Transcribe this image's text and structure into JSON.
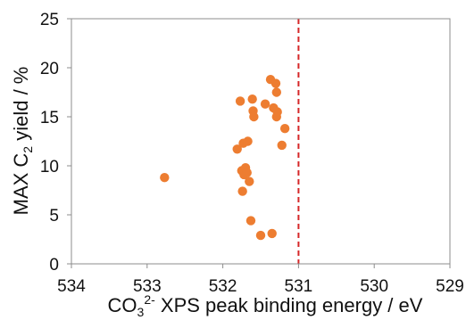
{
  "chart_data": {
    "type": "scatter",
    "xlabel": {
      "base": "CO",
      "subscript": "3",
      "superscript": "2-",
      "rest": " XPS peak binding energy / eV"
    },
    "ylabel": {
      "base": "MAX C",
      "subscript": "2",
      "rest": " yield / %"
    },
    "xlim": [
      534,
      529
    ],
    "x_reversed": true,
    "ylim": [
      0,
      25
    ],
    "x_ticks": [
      "534",
      "533",
      "532",
      "531",
      "530",
      "529"
    ],
    "y_ticks": [
      "0",
      "5",
      "10",
      "15",
      "20",
      "25"
    ],
    "grid": false,
    "legend": "none",
    "marker_color": "#ED7D31",
    "reference_line": {
      "x": 531.0,
      "color": "#D62728",
      "style": "dashed"
    },
    "points": [
      {
        "x": 532.77,
        "y": 8.8
      },
      {
        "x": 531.81,
        "y": 11.7
      },
      {
        "x": 531.77,
        "y": 16.6
      },
      {
        "x": 531.75,
        "y": 9.5
      },
      {
        "x": 531.74,
        "y": 7.4
      },
      {
        "x": 531.73,
        "y": 12.3
      },
      {
        "x": 531.72,
        "y": 9.1
      },
      {
        "x": 531.7,
        "y": 9.8
      },
      {
        "x": 531.68,
        "y": 9.3
      },
      {
        "x": 531.67,
        "y": 12.5
      },
      {
        "x": 531.65,
        "y": 8.4
      },
      {
        "x": 531.63,
        "y": 4.4
      },
      {
        "x": 531.61,
        "y": 16.8
      },
      {
        "x": 531.6,
        "y": 15.6
      },
      {
        "x": 531.59,
        "y": 15.0
      },
      {
        "x": 531.5,
        "y": 2.9
      },
      {
        "x": 531.44,
        "y": 16.3
      },
      {
        "x": 531.37,
        "y": 18.8
      },
      {
        "x": 531.35,
        "y": 3.1
      },
      {
        "x": 531.33,
        "y": 15.9
      },
      {
        "x": 531.3,
        "y": 18.4
      },
      {
        "x": 531.29,
        "y": 17.5
      },
      {
        "x": 531.29,
        "y": 15.0
      },
      {
        "x": 531.28,
        "y": 15.5
      },
      {
        "x": 531.22,
        "y": 12.1
      },
      {
        "x": 531.18,
        "y": 13.8
      }
    ]
  }
}
